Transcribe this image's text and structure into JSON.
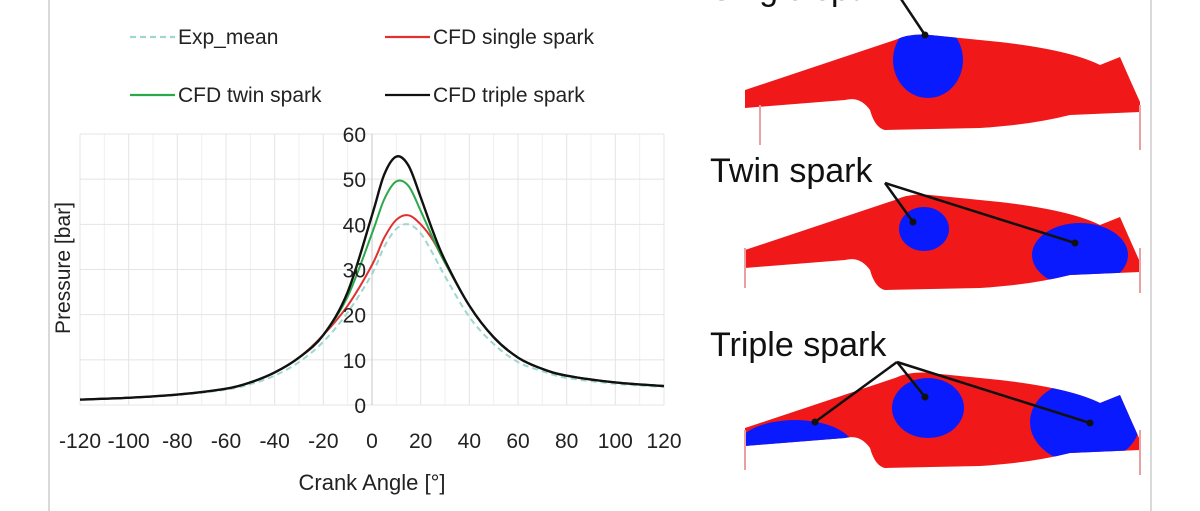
{
  "chart_data": {
    "type": "line",
    "xlabel": "Crank Angle [°]",
    "ylabel": "Pressure [bar]",
    "xlim": [
      -120,
      120
    ],
    "ylim": [
      0,
      60
    ],
    "xticks": [
      -120,
      -100,
      -80,
      -60,
      -40,
      -20,
      0,
      20,
      40,
      60,
      80,
      100,
      120
    ],
    "yticks": [
      0,
      10,
      20,
      30,
      40,
      50,
      60
    ],
    "grid": true,
    "legend_position": "top",
    "series": [
      {
        "name": "Exp_mean",
        "color": "#9fd6cf",
        "dash": true,
        "x": [
          -120,
          -100,
          -80,
          -60,
          -50,
          -40,
          -30,
          -20,
          -10,
          0,
          5,
          10,
          15,
          20,
          25,
          30,
          40,
          50,
          60,
          70,
          80,
          100,
          120
        ],
        "y": [
          1.2,
          1.6,
          2.2,
          3.4,
          4.6,
          6.5,
          9.5,
          14,
          20.5,
          29,
          35,
          39,
          40,
          38,
          33.5,
          28.5,
          19.5,
          13.5,
          9.5,
          7.5,
          6,
          4.7,
          4
        ]
      },
      {
        "name": "CFD single spark",
        "color": "#e03030",
        "dash": false,
        "x": [
          -120,
          -100,
          -80,
          -60,
          -50,
          -40,
          -30,
          -20,
          -10,
          0,
          5,
          10,
          15,
          20,
          25,
          30,
          40,
          50,
          60,
          70,
          80,
          100,
          120
        ],
        "y": [
          1.2,
          1.6,
          2.3,
          3.6,
          5,
          7.2,
          10.5,
          15.5,
          22,
          31,
          37,
          41,
          42,
          40,
          36.5,
          31.5,
          22,
          15,
          10.5,
          8,
          6.5,
          5,
          4.2
        ]
      },
      {
        "name": "CFD twin spark",
        "color": "#2aa84a",
        "dash": false,
        "x": [
          -120,
          -100,
          -80,
          -60,
          -50,
          -40,
          -30,
          -20,
          -10,
          0,
          5,
          10,
          15,
          20,
          25,
          30,
          40,
          50,
          60,
          70,
          80,
          100,
          120
        ],
        "y": [
          1.2,
          1.6,
          2.3,
          3.6,
          5,
          7.2,
          10.5,
          15.5,
          24,
          38,
          45.5,
          49.5,
          48.5,
          43,
          37,
          31.5,
          22,
          15,
          10.5,
          8,
          6.5,
          5,
          4.2
        ]
      },
      {
        "name": "CFD triple spark",
        "color": "#111111",
        "dash": false,
        "x": [
          -120,
          -100,
          -80,
          -60,
          -50,
          -40,
          -30,
          -20,
          -10,
          0,
          5,
          10,
          15,
          20,
          25,
          30,
          40,
          50,
          60,
          70,
          80,
          100,
          120
        ],
        "y": [
          1.2,
          1.6,
          2.3,
          3.6,
          5,
          7.2,
          10.5,
          15.5,
          25,
          42,
          51,
          55,
          53,
          46,
          38.5,
          32,
          22,
          15,
          10.5,
          8,
          6.5,
          5,
          4.2
        ]
      }
    ]
  },
  "panels": [
    {
      "title": "Single spark",
      "sparks": 1
    },
    {
      "title": "Twin spark",
      "sparks": 2
    },
    {
      "title": "Triple spark",
      "sparks": 3
    }
  ],
  "colors": {
    "burned": "#0a1aff",
    "unburned": "#f01818"
  }
}
